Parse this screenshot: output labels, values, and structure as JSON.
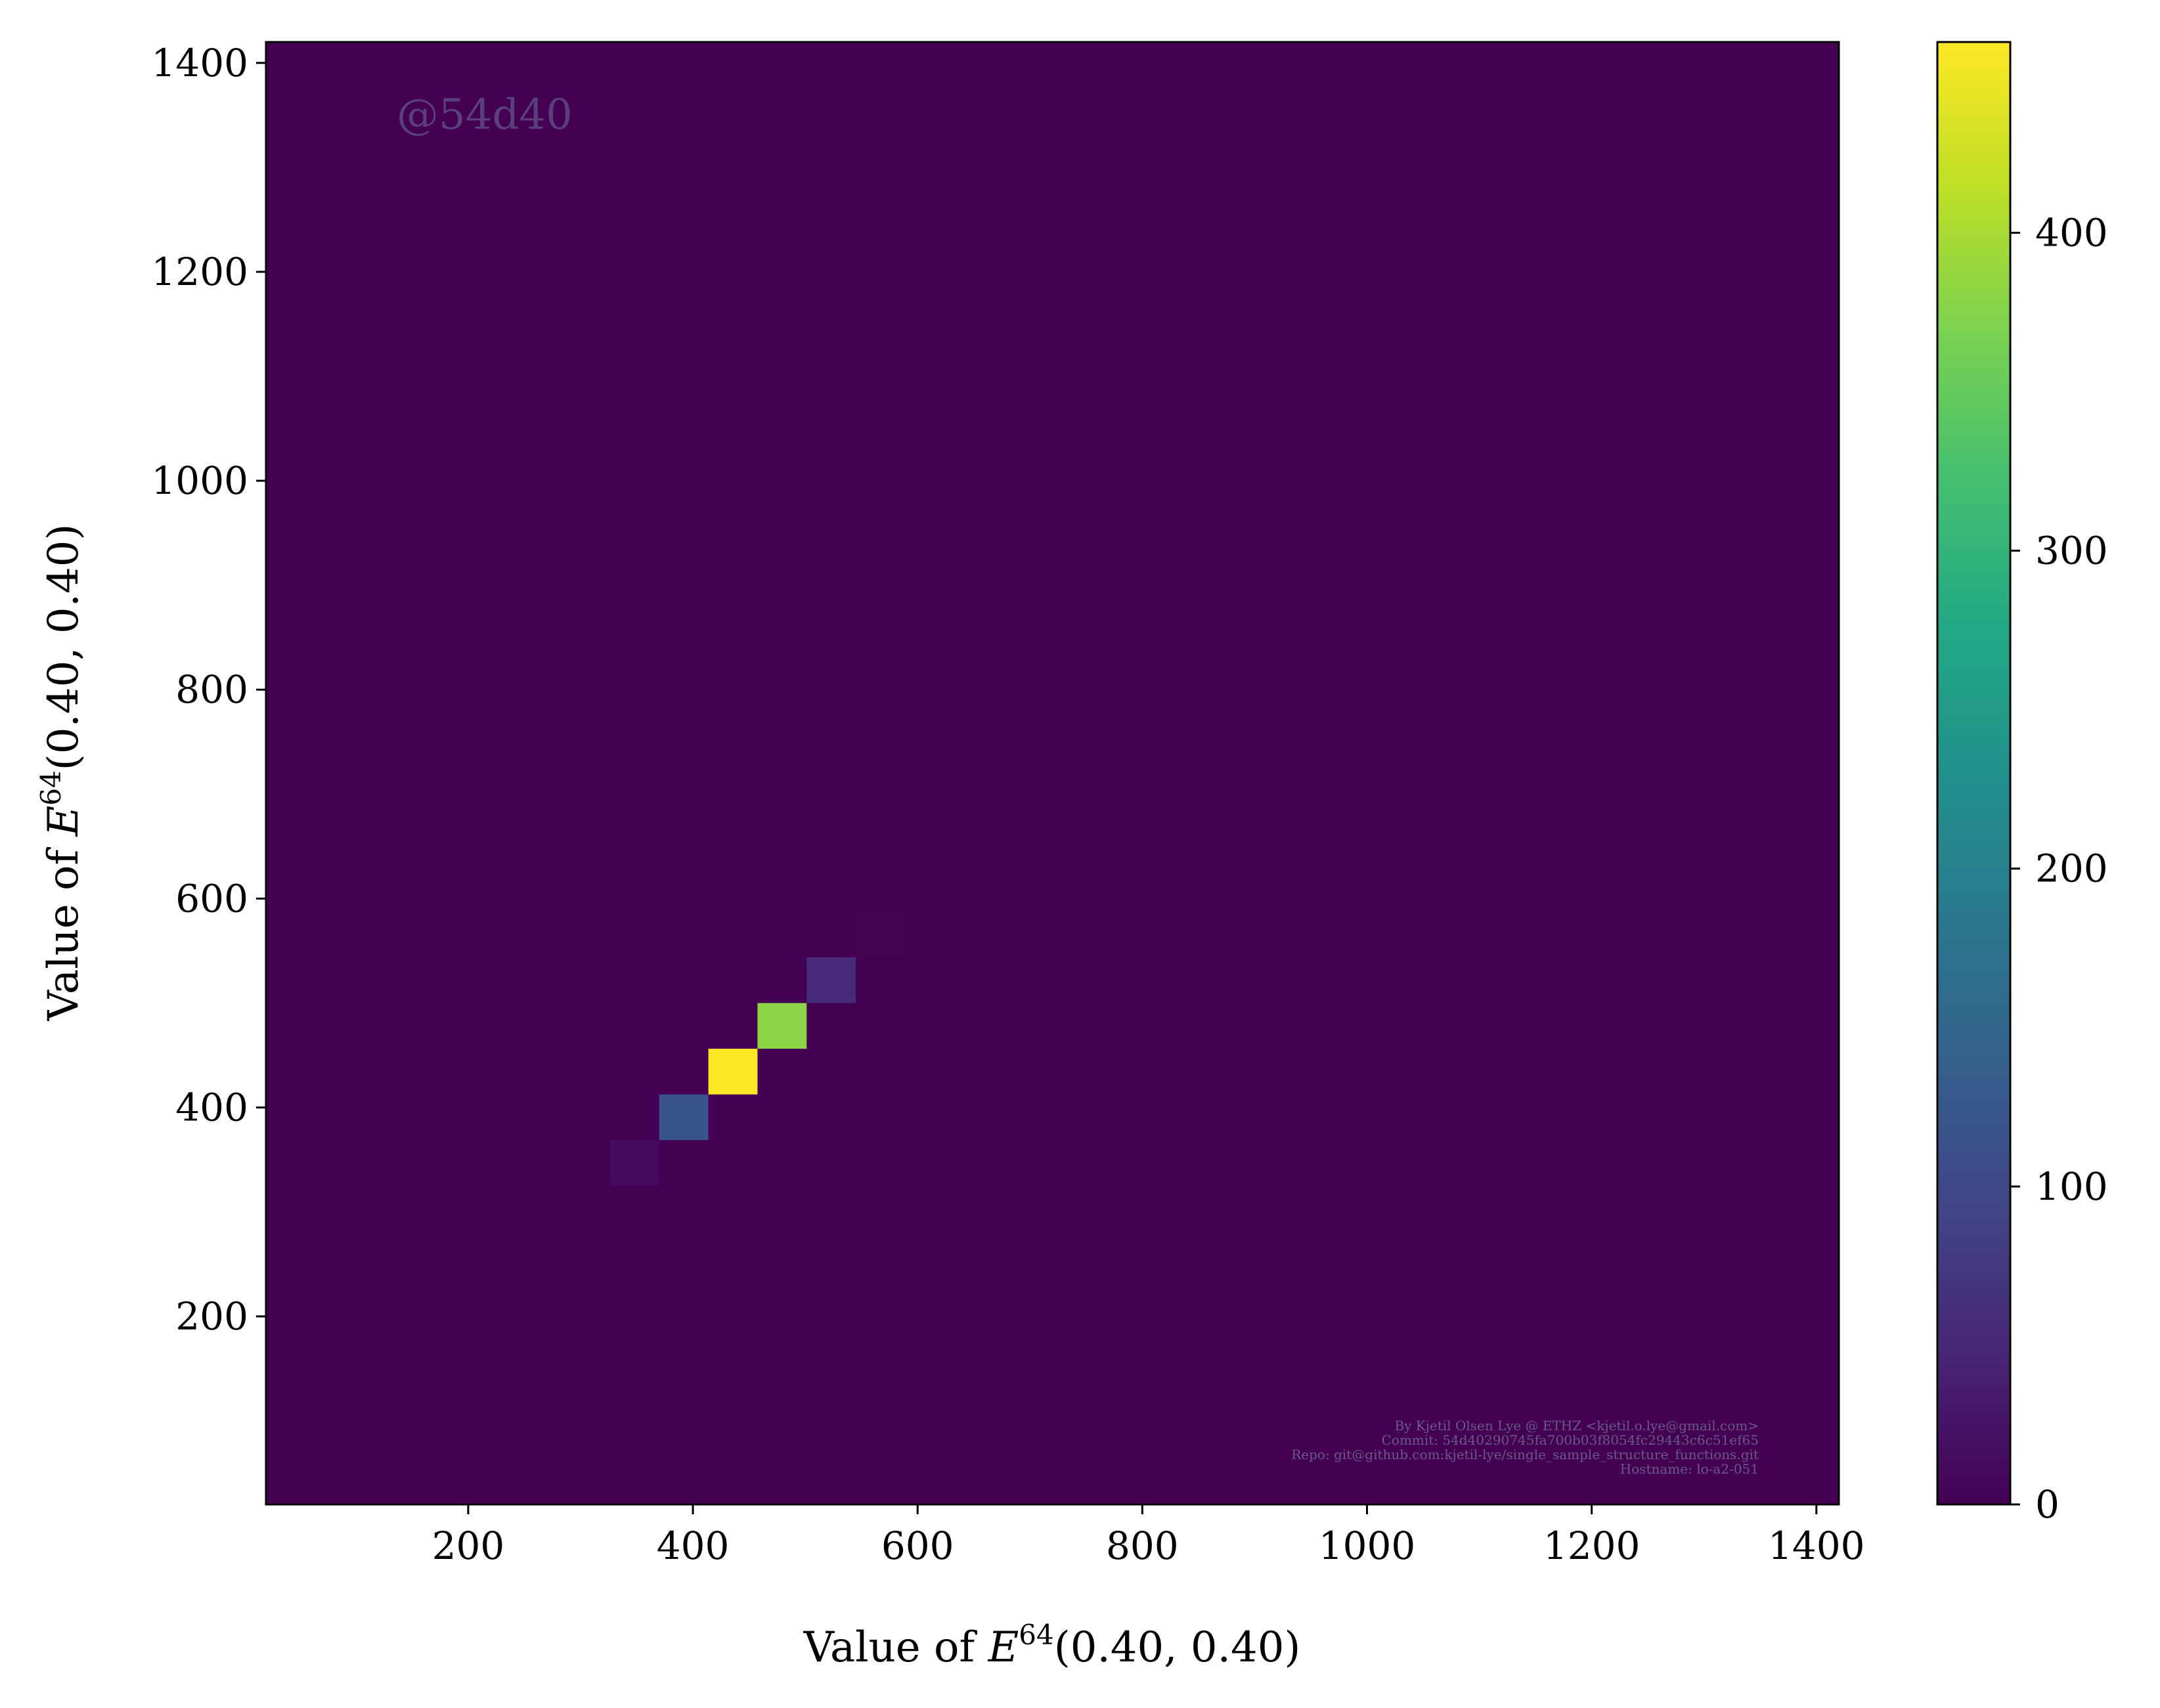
{
  "chart_data": {
    "type": "heatmap",
    "xlabel": {
      "prefix": "Value of ",
      "var": "E",
      "sup": "64",
      "args": "(0.40, 0.40)"
    },
    "ylabel": {
      "prefix": "Value of ",
      "var": "E",
      "sup": "64",
      "args": "(0.40, 0.40)"
    },
    "xlim": [
      20,
      1420
    ],
    "ylim": [
      20,
      1420
    ],
    "x_ticks": [
      200,
      400,
      600,
      800,
      1000,
      1200,
      1400
    ],
    "y_ticks": [
      200,
      400,
      600,
      800,
      1000,
      1200,
      1400
    ],
    "bin_width": 43.75,
    "colorbar": {
      "range": [
        0,
        460
      ],
      "ticks": [
        0,
        100,
        200,
        300,
        400
      ],
      "colormap": "viridis"
    },
    "grid": false,
    "background_value": 0,
    "cells": [
      {
        "x0": 326.25,
        "y0": 325.0,
        "count": 12
      },
      {
        "x0": 370.0,
        "y0": 368.75,
        "count": 120
      },
      {
        "x0": 413.75,
        "y0": 412.5,
        "count": 460
      },
      {
        "x0": 457.5,
        "y0": 456.25,
        "count": 380
      },
      {
        "x0": 501.25,
        "y0": 500.0,
        "count": 55
      },
      {
        "x0": 545.0,
        "y0": 543.75,
        "count": 2
      }
    ]
  },
  "watermark": "@54d40",
  "credits": [
    "By Kjetil Olsen Lye @ ETHZ <kjetil.o.lye@gmail.com>",
    "Commit: 54d40290745fa700b03f8054fc29443c6c51ef65",
    "Repo: git@github.com:kjetil-lye/single_sample_structure_functions.git",
    "Hostname: lo-a2-051"
  ]
}
